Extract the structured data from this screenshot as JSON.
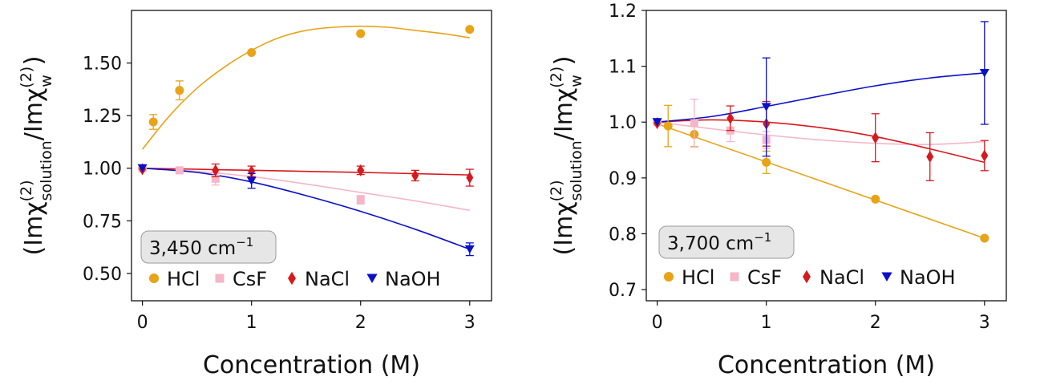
{
  "chart_data": [
    {
      "type": "scatter",
      "annotation": "3,450 cm",
      "annotation_sup": "−1",
      "xlabel": "Concentration (M)",
      "ylabel": {
        "pre": "(Imχ",
        "sup1": "(2)",
        "sub1": "solution",
        "mid": "/Imχ",
        "sup2": "(2)",
        "sub2": "w",
        "post": ")"
      },
      "xlim": [
        -0.1,
        3.2
      ],
      "ylim": [
        0.37,
        1.75
      ],
      "xticks": [
        0,
        1,
        2,
        3
      ],
      "xtick_labels": [
        "0",
        "1",
        "2",
        "3"
      ],
      "yticks": [
        0.5,
        0.75,
        1.0,
        1.25,
        1.5
      ],
      "ytick_labels": [
        "0.50",
        "0.75",
        "1.00",
        "1.25",
        "1.50"
      ],
      "legend_position": "bottom",
      "series": [
        {
          "name": "HCl",
          "color": "#E8A317",
          "marker": "circle",
          "x": [
            0,
            0.1,
            0.34,
            1,
            2,
            3
          ],
          "y": [
            1.0,
            1.22,
            1.37,
            1.55,
            1.64,
            1.66
          ],
          "err": [
            0,
            0.035,
            0.045,
            0,
            0,
            0
          ],
          "fit_x": [
            0,
            0.25,
            0.5,
            0.75,
            1,
            1.25,
            1.5,
            1.75,
            2,
            2.25,
            2.5,
            2.75,
            3
          ],
          "fit_y": [
            1.09,
            1.25,
            1.38,
            1.48,
            1.56,
            1.62,
            1.655,
            1.67,
            1.675,
            1.67,
            1.655,
            1.64,
            1.62
          ]
        },
        {
          "name": "CsF",
          "color": "#F4B6C8",
          "marker": "square",
          "x": [
            0,
            0.34,
            0.67,
            2
          ],
          "y": [
            1.0,
            0.99,
            0.95,
            0.85
          ],
          "err": [
            0,
            0,
            0.03,
            0.02
          ],
          "fit_x": [
            0,
            0.5,
            1,
            1.5,
            2,
            2.5,
            3
          ],
          "fit_y": [
            1.0,
            0.985,
            0.96,
            0.925,
            0.885,
            0.845,
            0.8
          ]
        },
        {
          "name": "NaCl",
          "color": "#D7191C",
          "marker": "diamond",
          "x": [
            0,
            0.67,
            1,
            2,
            2.5,
            3
          ],
          "y": [
            0.995,
            0.99,
            0.985,
            0.99,
            0.965,
            0.955
          ],
          "err": [
            0,
            0.03,
            0.025,
            0.02,
            0.025,
            0.04
          ],
          "fit_x": [
            0,
            1,
            2,
            3
          ],
          "fit_y": [
            1.0,
            0.99,
            0.98,
            0.968
          ]
        },
        {
          "name": "NaOH",
          "color": "#0A10C8",
          "marker": "triangle-down",
          "x": [
            0,
            1,
            3
          ],
          "y": [
            1.0,
            0.94,
            0.615
          ],
          "err": [
            0,
            0.035,
            0.03
          ],
          "fit_x": [
            0,
            0.5,
            1,
            1.5,
            2,
            2.5,
            3
          ],
          "fit_y": [
            1.0,
            0.98,
            0.935,
            0.87,
            0.795,
            0.71,
            0.615
          ]
        }
      ]
    },
    {
      "type": "scatter",
      "annotation": "3,700 cm",
      "annotation_sup": "−1",
      "xlabel": "Concentration (M)",
      "ylabel": {
        "pre": "(Imχ",
        "sup1": "(2)",
        "sub1": "solution",
        "mid": "/Imχ",
        "sup2": "(2)",
        "sub2": "w",
        "post": ")"
      },
      "xlim": [
        -0.1,
        3.2
      ],
      "ylim": [
        0.68,
        1.2
      ],
      "xticks": [
        0,
        1,
        2,
        3
      ],
      "xtick_labels": [
        "0",
        "1",
        "2",
        "3"
      ],
      "yticks": [
        0.7,
        0.8,
        0.9,
        1.0,
        1.1,
        1.2
      ],
      "ytick_labels": [
        "0.7",
        "0.8",
        "0.9",
        "1.0",
        "1.1",
        "1.2"
      ],
      "legend_position": "bottom",
      "series": [
        {
          "name": "HCl",
          "color": "#E8A317",
          "marker": "circle",
          "x": [
            0,
            0.1,
            0.34,
            1,
            2,
            3
          ],
          "y": [
            1.0,
            0.993,
            0.978,
            0.928,
            0.862,
            0.792
          ],
          "err": [
            0,
            0.037,
            0.022,
            0.02,
            0,
            0
          ],
          "fit_x": [
            0,
            3
          ],
          "fit_y": [
            0.997,
            0.792
          ]
        },
        {
          "name": "CsF",
          "color": "#F4B6C8",
          "marker": "square",
          "x": [
            0,
            0.34,
            0.67,
            1
          ],
          "y": [
            1.0,
            0.998,
            0.985,
            0.968
          ],
          "err": [
            0,
            0.043,
            0.02,
            0.015
          ],
          "fit_x": [
            0,
            0.5,
            1,
            1.5,
            2,
            2.5,
            3
          ],
          "fit_y": [
            1.0,
            0.988,
            0.977,
            0.968,
            0.962,
            0.96,
            0.965
          ]
        },
        {
          "name": "NaCl",
          "color": "#D7191C",
          "marker": "diamond",
          "x": [
            0,
            0.67,
            1,
            2,
            2.5,
            3
          ],
          "y": [
            0.998,
            1.007,
            0.997,
            0.972,
            0.938,
            0.94
          ],
          "err": [
            0,
            0.022,
            0.04,
            0.043,
            0.043,
            0.027
          ],
          "fit_x": [
            0,
            0.5,
            1,
            1.5,
            2,
            2.5,
            3
          ],
          "fit_y": [
            1.0,
            1.004,
            1.0,
            0.99,
            0.974,
            0.952,
            0.928
          ]
        },
        {
          "name": "NaOH",
          "color": "#0A10C8",
          "marker": "triangle-down",
          "x": [
            0,
            1,
            3
          ],
          "y": [
            1.0,
            1.027,
            1.088
          ],
          "err": [
            0,
            0.088,
            0.092
          ],
          "fit_x": [
            0,
            0.5,
            1,
            1.5,
            2,
            2.5,
            3
          ],
          "fit_y": [
            1.0,
            1.01,
            1.028,
            1.047,
            1.065,
            1.079,
            1.088
          ]
        }
      ]
    }
  ]
}
